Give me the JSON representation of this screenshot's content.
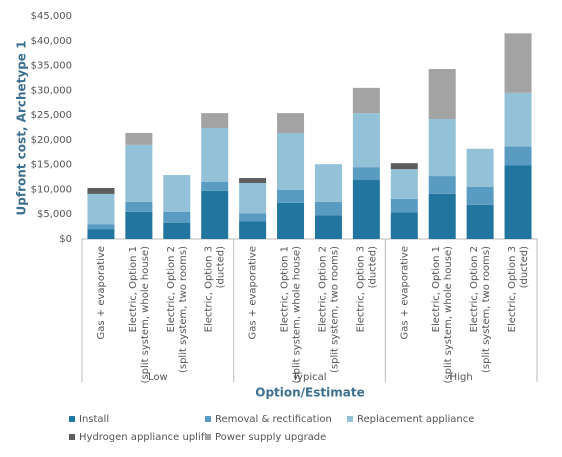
{
  "chart_data": {
    "type": "stacked_bar",
    "y_label": "Upfront cost, Archetype 1",
    "x_label": "Option/Estimate",
    "groups": [
      {
        "label": "Low",
        "categories": [
          [
            "Gas + evaporative"
          ],
          [
            "Electric, Option 1",
            "(split system, whole house)"
          ],
          [
            "Electric, Option 2",
            "(split system, two rooms)"
          ],
          [
            "Electric, Option 3",
            "(ducted)"
          ]
        ]
      },
      {
        "label": "Typical",
        "categories": [
          [
            "Gas + evaporative"
          ],
          [
            "Electric, Option 1",
            "(split system, whole house)"
          ],
          [
            "Electric, Option 2",
            "(split system, two rooms)"
          ],
          [
            "Electric, Option 3",
            "(ducted)"
          ]
        ]
      },
      {
        "label": "High",
        "categories": [
          [
            "Gas + evaporative"
          ],
          [
            "Electric, Option 1",
            "(split system, whole house)"
          ],
          [
            "Electric, Option 2",
            "(split system, two rooms)"
          ],
          [
            "Electric, Option 3",
            "(ducted)"
          ]
        ]
      }
    ],
    "series": [
      {
        "name": "Install",
        "color": "#21759f",
        "values": [
          2000,
          5500,
          3300,
          9700,
          3600,
          7300,
          4800,
          11900,
          5400,
          9100,
          6900,
          14900
        ]
      },
      {
        "name": "Removal & rectification",
        "color": "#5a9bc2",
        "values": [
          1000,
          2000,
          2200,
          1800,
          1600,
          2600,
          2700,
          2600,
          2700,
          3600,
          3600,
          3800
        ]
      },
      {
        "name": "Replacement appliance",
        "color": "#93c1d7",
        "values": [
          6100,
          11500,
          7400,
          10900,
          6100,
          11500,
          7600,
          10900,
          6000,
          11500,
          7700,
          10800
        ]
      },
      {
        "name": "Hydrogen appliance uplift",
        "color": "#5d5d5d",
        "values": [
          1200,
          0,
          0,
          0,
          1000,
          0,
          0,
          0,
          1200,
          0,
          0,
          0
        ]
      },
      {
        "name": "Power supply upgrade",
        "color": "#a3a3a3",
        "values": [
          0,
          2400,
          0,
          3000,
          0,
          4000,
          0,
          5100,
          0,
          10100,
          0,
          12000
        ]
      }
    ],
    "ylim": [
      0,
      45000
    ],
    "yticks": [
      {
        "value": 0,
        "label": "$0"
      },
      {
        "value": 5000,
        "label": "$5,000"
      },
      {
        "value": 10000,
        "label": "$10,000"
      },
      {
        "value": 15000,
        "label": "$15,000"
      },
      {
        "value": 20000,
        "label": "$20,000"
      },
      {
        "value": 25000,
        "label": "$25,000"
      },
      {
        "value": 30000,
        "label": "$30,000"
      },
      {
        "value": 35000,
        "label": "$35,000"
      },
      {
        "value": 40000,
        "label": "$40,000"
      },
      {
        "value": 45000,
        "label": "$45,000"
      }
    ],
    "grid": false
  }
}
